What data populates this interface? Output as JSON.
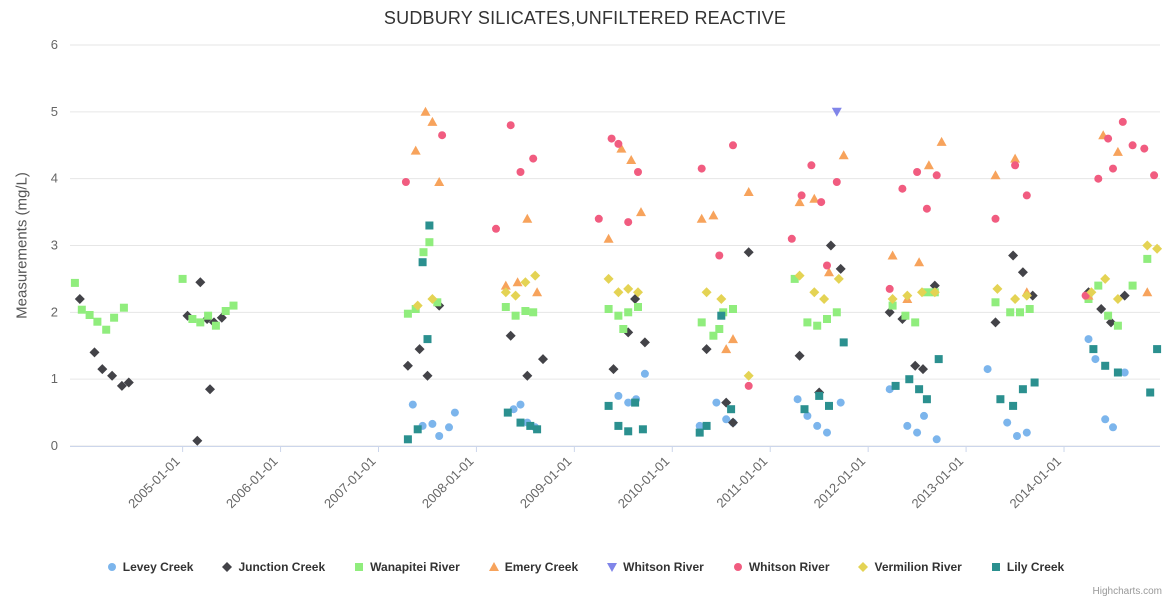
{
  "chart": {
    "title": "SUDBURY SILICATES,UNFILTERED REACTIVE",
    "y_axis_title": "Measurements (mg/L)",
    "credits": "Highcharts.com"
  },
  "chart_data": {
    "type": "scatter",
    "title": "SUDBURY SILICATES,UNFILTERED REACTIVE",
    "xlabel": "",
    "ylabel": "Measurements (mg/L)",
    "grid": "horizontal",
    "legend_position": "bottom",
    "x_axis": {
      "unit": "decimal_year",
      "min": 2003.85,
      "max": 2014.98,
      "label_rotation": -45,
      "ticks": [
        {
          "value": 2005,
          "label": "2005-01-01"
        },
        {
          "value": 2006,
          "label": "2006-01-01"
        },
        {
          "value": 2007,
          "label": "2007-01-01"
        },
        {
          "value": 2008,
          "label": "2008-01-01"
        },
        {
          "value": 2009,
          "label": "2009-01-01"
        },
        {
          "value": 2010,
          "label": "2010-01-01"
        },
        {
          "value": 2011,
          "label": "2011-01-01"
        },
        {
          "value": 2012,
          "label": "2012-01-01"
        },
        {
          "value": 2013,
          "label": "2013-01-01"
        },
        {
          "value": 2014,
          "label": "2014-01-01"
        }
      ]
    },
    "y_axis": {
      "min": 0,
      "max": 6,
      "ticks": [
        0,
        1,
        2,
        3,
        4,
        5,
        6
      ]
    },
    "series": [
      {
        "name": "Levey Creek",
        "color": "#7cb5ec",
        "marker": "circle",
        "points": [
          [
            2007.35,
            0.62
          ],
          [
            2007.45,
            0.3
          ],
          [
            2007.55,
            0.33
          ],
          [
            2007.62,
            0.15
          ],
          [
            2007.72,
            0.28
          ],
          [
            2007.78,
            0.5
          ],
          [
            2008.38,
            0.55
          ],
          [
            2008.45,
            0.62
          ],
          [
            2008.52,
            0.35
          ],
          [
            2008.6,
            0.28
          ],
          [
            2009.45,
            0.75
          ],
          [
            2009.55,
            0.65
          ],
          [
            2009.63,
            0.7
          ],
          [
            2009.72,
            1.08
          ],
          [
            2010.28,
            0.3
          ],
          [
            2010.45,
            0.65
          ],
          [
            2010.55,
            0.4
          ],
          [
            2010.62,
            0.35
          ],
          [
            2011.28,
            0.7
          ],
          [
            2011.38,
            0.45
          ],
          [
            2011.48,
            0.3
          ],
          [
            2011.58,
            0.2
          ],
          [
            2011.72,
            0.65
          ],
          [
            2012.22,
            0.85
          ],
          [
            2012.4,
            0.3
          ],
          [
            2012.5,
            0.2
          ],
          [
            2012.57,
            0.45
          ],
          [
            2012.7,
            0.1
          ],
          [
            2013.22,
            1.15
          ],
          [
            2013.42,
            0.35
          ],
          [
            2013.52,
            0.15
          ],
          [
            2013.62,
            0.2
          ],
          [
            2014.25,
            1.6
          ],
          [
            2014.32,
            1.3
          ],
          [
            2014.42,
            0.4
          ],
          [
            2014.5,
            0.28
          ],
          [
            2014.62,
            1.1
          ]
        ]
      },
      {
        "name": "Junction Creek",
        "color": "#434348",
        "marker": "diamond",
        "points": [
          [
            2003.95,
            2.2
          ],
          [
            2004.1,
            1.4
          ],
          [
            2004.18,
            1.15
          ],
          [
            2004.28,
            1.05
          ],
          [
            2004.38,
            0.9
          ],
          [
            2004.45,
            0.95
          ],
          [
            2005.05,
            1.95
          ],
          [
            2005.15,
            0.08
          ],
          [
            2005.18,
            2.45
          ],
          [
            2005.25,
            1.9
          ],
          [
            2005.28,
            0.85
          ],
          [
            2005.32,
            1.85
          ],
          [
            2005.4,
            1.92
          ],
          [
            2007.3,
            1.2
          ],
          [
            2007.42,
            1.45
          ],
          [
            2007.5,
            1.05
          ],
          [
            2007.62,
            2.1
          ],
          [
            2008.35,
            1.65
          ],
          [
            2008.52,
            1.05
          ],
          [
            2008.68,
            1.3
          ],
          [
            2009.4,
            1.15
          ],
          [
            2009.55,
            1.7
          ],
          [
            2009.62,
            2.2
          ],
          [
            2009.72,
            1.55
          ],
          [
            2010.35,
            1.45
          ],
          [
            2010.55,
            0.65
          ],
          [
            2010.62,
            0.35
          ],
          [
            2010.78,
            2.9
          ],
          [
            2011.3,
            1.35
          ],
          [
            2011.5,
            0.8
          ],
          [
            2011.62,
            3.0
          ],
          [
            2011.72,
            2.65
          ],
          [
            2012.22,
            2.0
          ],
          [
            2012.35,
            1.9
          ],
          [
            2012.48,
            1.2
          ],
          [
            2012.56,
            1.15
          ],
          [
            2012.68,
            2.4
          ],
          [
            2013.3,
            1.85
          ],
          [
            2013.48,
            2.85
          ],
          [
            2013.58,
            2.6
          ],
          [
            2013.68,
            2.25
          ],
          [
            2014.25,
            2.3
          ],
          [
            2014.38,
            2.05
          ],
          [
            2014.48,
            1.85
          ],
          [
            2014.62,
            2.25
          ]
        ]
      },
      {
        "name": "Wanapitei River",
        "color": "#90ed7d",
        "marker": "square",
        "points": [
          [
            2003.9,
            2.44
          ],
          [
            2003.97,
            2.04
          ],
          [
            2004.05,
            1.96
          ],
          [
            2004.13,
            1.86
          ],
          [
            2004.22,
            1.74
          ],
          [
            2004.3,
            1.92
          ],
          [
            2004.4,
            2.07
          ],
          [
            2005.0,
            2.5
          ],
          [
            2005.1,
            1.9
          ],
          [
            2005.18,
            1.85
          ],
          [
            2005.26,
            1.95
          ],
          [
            2005.34,
            1.8
          ],
          [
            2005.44,
            2.02
          ],
          [
            2005.52,
            2.1
          ],
          [
            2007.3,
            1.98
          ],
          [
            2007.38,
            2.05
          ],
          [
            2007.46,
            2.9
          ],
          [
            2007.52,
            3.05
          ],
          [
            2007.6,
            2.15
          ],
          [
            2008.3,
            2.08
          ],
          [
            2008.4,
            1.95
          ],
          [
            2008.5,
            2.02
          ],
          [
            2008.58,
            2.0
          ],
          [
            2009.35,
            2.05
          ],
          [
            2009.45,
            1.95
          ],
          [
            2009.5,
            1.75
          ],
          [
            2009.55,
            2.0
          ],
          [
            2009.65,
            2.08
          ],
          [
            2010.3,
            1.85
          ],
          [
            2010.42,
            1.65
          ],
          [
            2010.48,
            1.75
          ],
          [
            2010.52,
            2.0
          ],
          [
            2010.62,
            2.05
          ],
          [
            2011.25,
            2.5
          ],
          [
            2011.38,
            1.85
          ],
          [
            2011.48,
            1.8
          ],
          [
            2011.58,
            1.9
          ],
          [
            2011.68,
            2.0
          ],
          [
            2012.25,
            2.1
          ],
          [
            2012.38,
            1.95
          ],
          [
            2012.48,
            1.85
          ],
          [
            2012.6,
            2.3
          ],
          [
            2012.68,
            2.3
          ],
          [
            2013.3,
            2.15
          ],
          [
            2013.45,
            2.0
          ],
          [
            2013.55,
            2.0
          ],
          [
            2013.65,
            2.05
          ],
          [
            2014.25,
            2.2
          ],
          [
            2014.35,
            2.4
          ],
          [
            2014.45,
            1.95
          ],
          [
            2014.55,
            1.8
          ],
          [
            2014.7,
            2.4
          ],
          [
            2014.85,
            2.8
          ]
        ]
      },
      {
        "name": "Emery Creek",
        "color": "#f7a35c",
        "marker": "triangle",
        "points": [
          [
            2007.38,
            4.42
          ],
          [
            2007.48,
            5.0
          ],
          [
            2007.55,
            4.85
          ],
          [
            2007.62,
            3.95
          ],
          [
            2008.3,
            2.4
          ],
          [
            2008.42,
            2.45
          ],
          [
            2008.52,
            3.4
          ],
          [
            2008.62,
            2.3
          ],
          [
            2009.35,
            3.1
          ],
          [
            2009.48,
            4.45
          ],
          [
            2009.58,
            4.28
          ],
          [
            2009.68,
            3.5
          ],
          [
            2010.3,
            3.4
          ],
          [
            2010.42,
            3.45
          ],
          [
            2010.55,
            1.45
          ],
          [
            2010.62,
            1.6
          ],
          [
            2010.78,
            3.8
          ],
          [
            2011.3,
            3.65
          ],
          [
            2011.45,
            3.7
          ],
          [
            2011.6,
            2.6
          ],
          [
            2011.75,
            4.35
          ],
          [
            2012.25,
            2.85
          ],
          [
            2012.4,
            2.2
          ],
          [
            2012.52,
            2.75
          ],
          [
            2012.62,
            4.2
          ],
          [
            2012.75,
            4.55
          ],
          [
            2013.3,
            4.05
          ],
          [
            2013.5,
            4.3
          ],
          [
            2013.62,
            2.3
          ],
          [
            2014.25,
            2.25
          ],
          [
            2014.4,
            4.65
          ],
          [
            2014.55,
            4.4
          ],
          [
            2014.85,
            2.3
          ]
        ]
      },
      {
        "name": "Whitson River",
        "color": "#8085e9",
        "marker": "triangle-down",
        "points": [
          [
            2011.68,
            5.0
          ]
        ]
      },
      {
        "name": "Whitson River",
        "color": "#f15c80",
        "marker": "circle",
        "points": [
          [
            2007.28,
            3.95
          ],
          [
            2007.65,
            4.65
          ],
          [
            2008.2,
            3.25
          ],
          [
            2008.35,
            4.8
          ],
          [
            2008.45,
            4.1
          ],
          [
            2008.58,
            4.3
          ],
          [
            2009.25,
            3.4
          ],
          [
            2009.38,
            4.6
          ],
          [
            2009.45,
            4.52
          ],
          [
            2009.55,
            3.35
          ],
          [
            2009.65,
            4.1
          ],
          [
            2010.3,
            4.15
          ],
          [
            2010.48,
            2.85
          ],
          [
            2010.62,
            4.5
          ],
          [
            2010.78,
            0.9
          ],
          [
            2011.22,
            3.1
          ],
          [
            2011.32,
            3.75
          ],
          [
            2011.42,
            4.2
          ],
          [
            2011.52,
            3.65
          ],
          [
            2011.58,
            2.7
          ],
          [
            2011.68,
            3.95
          ],
          [
            2012.22,
            2.35
          ],
          [
            2012.35,
            3.85
          ],
          [
            2012.5,
            4.1
          ],
          [
            2012.6,
            3.55
          ],
          [
            2012.7,
            4.05
          ],
          [
            2013.3,
            3.4
          ],
          [
            2013.5,
            4.2
          ],
          [
            2013.62,
            3.75
          ],
          [
            2014.22,
            2.25
          ],
          [
            2014.35,
            4.0
          ],
          [
            2014.45,
            4.6
          ],
          [
            2014.5,
            4.15
          ],
          [
            2014.6,
            4.85
          ],
          [
            2014.7,
            4.5
          ],
          [
            2014.82,
            4.45
          ],
          [
            2014.92,
            4.05
          ]
        ]
      },
      {
        "name": "Vermilion River",
        "color": "#e4d354",
        "marker": "diamond",
        "points": [
          [
            2007.4,
            2.1
          ],
          [
            2007.55,
            2.2
          ],
          [
            2008.3,
            2.3
          ],
          [
            2008.4,
            2.25
          ],
          [
            2008.5,
            2.45
          ],
          [
            2008.6,
            2.55
          ],
          [
            2009.35,
            2.5
          ],
          [
            2009.45,
            2.3
          ],
          [
            2009.55,
            2.35
          ],
          [
            2009.65,
            2.3
          ],
          [
            2010.35,
            2.3
          ],
          [
            2010.5,
            2.2
          ],
          [
            2010.78,
            1.05
          ],
          [
            2011.3,
            2.55
          ],
          [
            2011.45,
            2.3
          ],
          [
            2011.55,
            2.2
          ],
          [
            2011.7,
            2.5
          ],
          [
            2012.25,
            2.2
          ],
          [
            2012.4,
            2.25
          ],
          [
            2012.55,
            2.3
          ],
          [
            2012.68,
            2.3
          ],
          [
            2013.32,
            2.35
          ],
          [
            2013.5,
            2.2
          ],
          [
            2013.62,
            2.25
          ],
          [
            2014.28,
            2.3
          ],
          [
            2014.42,
            2.5
          ],
          [
            2014.55,
            2.2
          ],
          [
            2014.85,
            3.0
          ],
          [
            2014.95,
            2.95
          ]
        ]
      },
      {
        "name": "Lily Creek",
        "color": "#2b908f",
        "marker": "square",
        "points": [
          [
            2007.3,
            0.1
          ],
          [
            2007.4,
            0.25
          ],
          [
            2007.45,
            2.75
          ],
          [
            2007.5,
            1.6
          ],
          [
            2007.52,
            3.3
          ],
          [
            2008.32,
            0.5
          ],
          [
            2008.45,
            0.35
          ],
          [
            2008.55,
            0.3
          ],
          [
            2008.62,
            0.25
          ],
          [
            2009.35,
            0.6
          ],
          [
            2009.45,
            0.3
          ],
          [
            2009.55,
            0.22
          ],
          [
            2009.62,
            0.65
          ],
          [
            2009.7,
            0.25
          ],
          [
            2010.28,
            0.2
          ],
          [
            2010.35,
            0.3
          ],
          [
            2010.5,
            1.95
          ],
          [
            2010.6,
            0.55
          ],
          [
            2011.35,
            0.55
          ],
          [
            2011.5,
            0.75
          ],
          [
            2011.6,
            0.6
          ],
          [
            2011.75,
            1.55
          ],
          [
            2012.28,
            0.9
          ],
          [
            2012.42,
            1.0
          ],
          [
            2012.52,
            0.85
          ],
          [
            2012.6,
            0.7
          ],
          [
            2012.72,
            1.3
          ],
          [
            2013.35,
            0.7
          ],
          [
            2013.48,
            0.6
          ],
          [
            2013.58,
            0.85
          ],
          [
            2013.7,
            0.95
          ],
          [
            2014.3,
            1.45
          ],
          [
            2014.42,
            1.2
          ],
          [
            2014.55,
            1.1
          ],
          [
            2014.88,
            0.8
          ],
          [
            2014.95,
            1.45
          ]
        ]
      }
    ]
  }
}
